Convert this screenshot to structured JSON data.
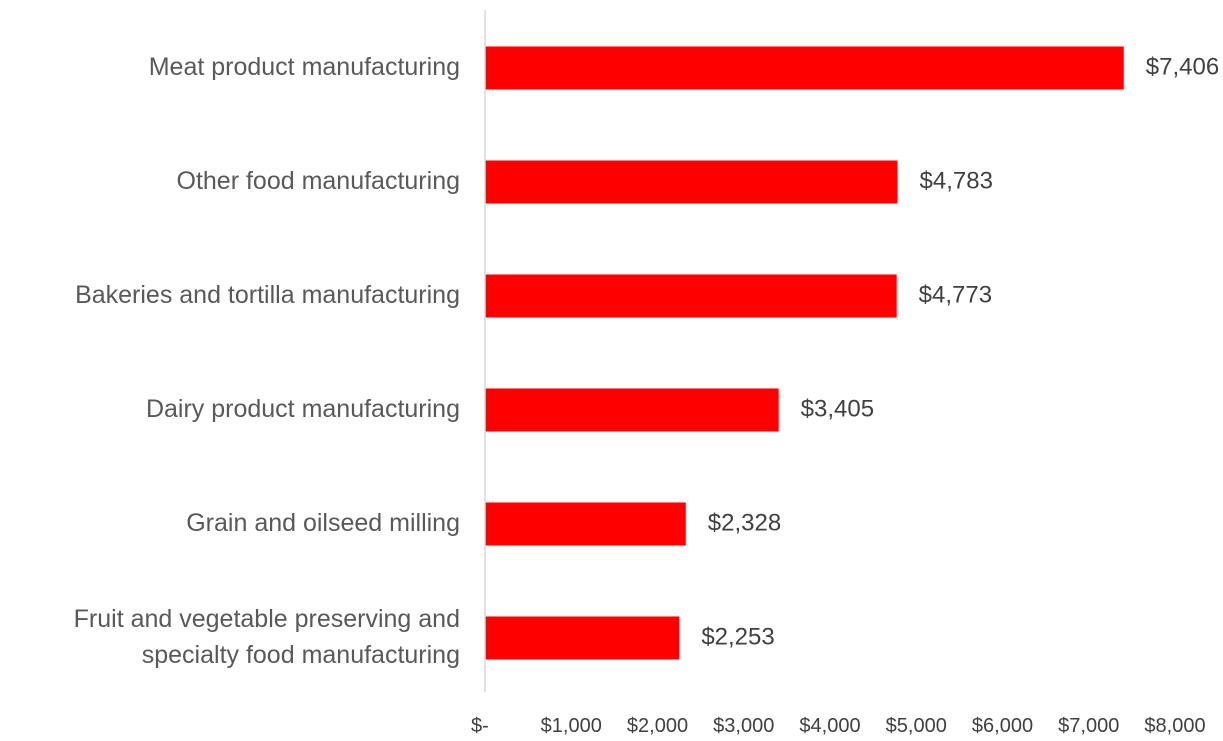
{
  "chart_data": {
    "type": "bar",
    "orientation": "horizontal",
    "categories": [
      "Meat product manufacturing",
      "Other food manufacturing",
      "Bakeries and tortilla manufacturing",
      "Dairy product manufacturing",
      "Grain and oilseed milling",
      "Fruit and vegetable preserving and specialty food manufacturing"
    ],
    "category_lines": [
      [
        "Meat product manufacturing"
      ],
      [
        "Other food manufacturing"
      ],
      [
        "Bakeries and tortilla manufacturing"
      ],
      [
        "Dairy product manufacturing"
      ],
      [
        "Grain and oilseed milling"
      ],
      [
        "Fruit and vegetable preserving and",
        "specialty food manufacturing"
      ]
    ],
    "values": [
      7406,
      4783,
      4773,
      3405,
      2328,
      2253
    ],
    "value_labels": [
      "$7,406",
      "$4,783",
      "$4,773",
      "$3,405",
      "$2,328",
      "$2,253"
    ],
    "xlim": [
      0,
      8000
    ],
    "x_ticks": [
      0,
      1000,
      2000,
      3000,
      4000,
      5000,
      6000,
      7000,
      8000
    ],
    "x_tick_labels": [
      "$-",
      "$1,000",
      "$2,000",
      "$3,000",
      "$4,000",
      "$5,000",
      "$6,000",
      "$7,000",
      "$8,000"
    ],
    "title": "",
    "xlabel": "",
    "ylabel": "",
    "grid": false,
    "legend": false,
    "bar_color": "#ff0000",
    "axis_color": "#d9d9d9"
  }
}
